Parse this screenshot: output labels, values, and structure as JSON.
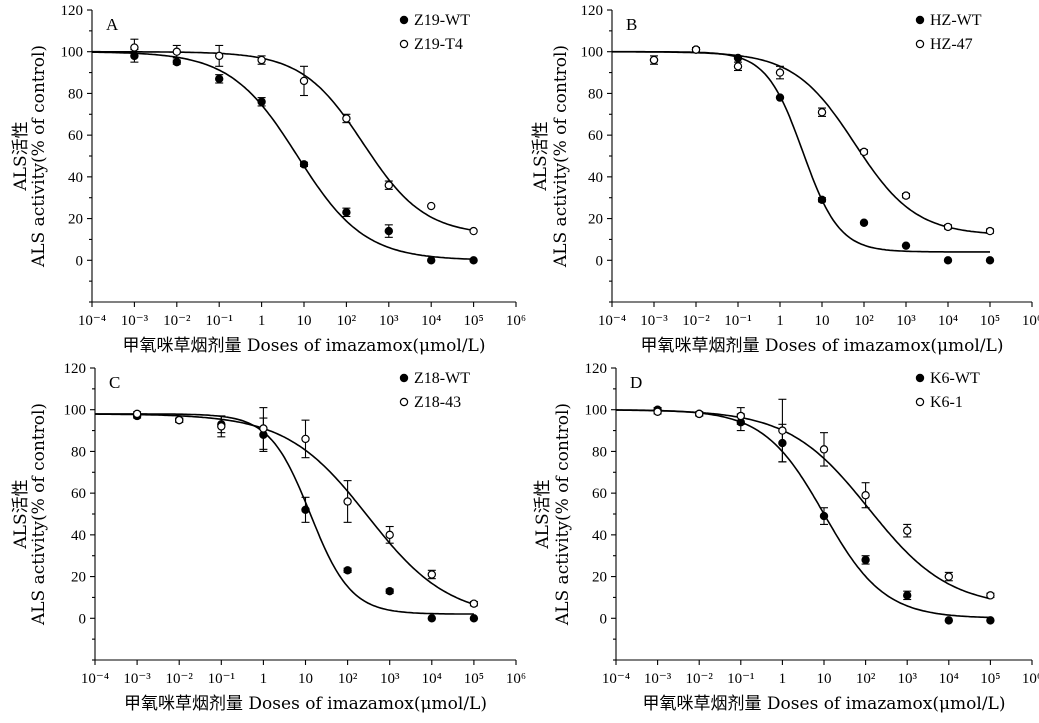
{
  "chart_data": [
    {
      "type": "scatter",
      "panel_label": "A",
      "xlabel": "甲氧咪草烟剂量 Doses of imazamox(μmol/L)",
      "ylabel_cn": "ALS活性",
      "ylabel_en": "ALS activity(% of control)",
      "x_scale": "log",
      "xlim": [
        0.0001,
        1000000
      ],
      "ylim": [
        -20,
        120
      ],
      "y_ticks": [
        0,
        20,
        40,
        60,
        80,
        100,
        120
      ],
      "x_tick_labels": [
        "10⁻⁴",
        "10⁻³",
        "10⁻²",
        "10⁻¹",
        "1",
        "10",
        "10²",
        "10³",
        "10⁴",
        "10⁵",
        "10⁶"
      ],
      "legend_position": "top-right",
      "grid": false,
      "series": [
        {
          "name": "Z19-WT",
          "marker": "filled-circle",
          "x": [
            0.001,
            0.01,
            0.1,
            1,
            10,
            100,
            1000,
            10000,
            100000
          ],
          "y": [
            98,
            95,
            87,
            76,
            46,
            23,
            14,
            0,
            0
          ],
          "err": [
            3,
            1,
            2,
            2,
            1,
            2,
            3,
            0,
            0
          ],
          "fit": {
            "top": 100,
            "bottom": 0,
            "ec50": 7,
            "hill": 0.55
          }
        },
        {
          "name": "Z19-T4",
          "marker": "open-circle",
          "x": [
            0.001,
            0.01,
            0.1,
            1,
            10,
            100,
            1000,
            10000,
            100000
          ],
          "y": [
            102,
            100,
            98,
            96,
            86,
            68,
            36,
            26,
            14
          ],
          "err": [
            4,
            3,
            5,
            2,
            7,
            2,
            2,
            0,
            0
          ],
          "fit": {
            "top": 100,
            "bottom": 12,
            "ec50": 250,
            "hill": 0.6
          }
        }
      ]
    },
    {
      "type": "scatter",
      "panel_label": "B",
      "xlabel": "甲氧咪草烟剂量 Doses of imazamox(μmol/L)",
      "ylabel_cn": "ALS活性",
      "ylabel_en": "ALS activity(% of control)",
      "x_scale": "log",
      "xlim": [
        0.0001,
        1000000
      ],
      "ylim": [
        -20,
        120
      ],
      "y_ticks": [
        0,
        20,
        40,
        60,
        80,
        100,
        120
      ],
      "x_tick_labels": [
        "10⁻⁴",
        "10⁻³",
        "10⁻²",
        "10⁻¹",
        "1",
        "10",
        "10²",
        "10³",
        "10⁴",
        "10⁵",
        "10⁶"
      ],
      "legend_position": "top-right",
      "grid": false,
      "series": [
        {
          "name": "HZ-WT",
          "marker": "filled-circle",
          "x": [
            0.001,
            0.01,
            0.1,
            1,
            10,
            100,
            1000,
            10000,
            100000
          ],
          "y": [
            96,
            101,
            97,
            78,
            29,
            18,
            7,
            0,
            0
          ],
          "err": [
            0,
            0,
            0,
            0,
            1,
            0,
            0,
            0,
            0
          ],
          "fit": {
            "top": 100,
            "bottom": 4,
            "ec50": 3.5,
            "hill": 1.0
          }
        },
        {
          "name": "HZ-47",
          "marker": "open-circle",
          "x": [
            0.001,
            0.01,
            0.1,
            1,
            10,
            100,
            1000,
            10000,
            100000
          ],
          "y": [
            96,
            101,
            93,
            90,
            71,
            52,
            31,
            16,
            14
          ],
          "err": [
            2,
            1,
            2,
            3,
            2,
            1,
            1,
            1,
            1
          ],
          "fit": {
            "top": 100,
            "bottom": 12,
            "ec50": 60,
            "hill": 0.6
          }
        }
      ]
    },
    {
      "type": "scatter",
      "panel_label": "C",
      "xlabel": "甲氧咪草烟剂量 Doses of imazamox(μmol/L)",
      "ylabel_cn": "ALS活性",
      "ylabel_en": "ALS activity(% of control)",
      "x_scale": "log",
      "xlim": [
        0.0001,
        1000000
      ],
      "ylim": [
        -20,
        120
      ],
      "y_ticks": [
        0,
        20,
        40,
        60,
        80,
        100,
        120
      ],
      "x_tick_labels": [
        "10⁻⁴",
        "10⁻³",
        "10⁻²",
        "10⁻¹",
        "1",
        "10",
        "10²",
        "10³",
        "10⁴",
        "10⁵",
        "10⁶"
      ],
      "legend_position": "top-right",
      "grid": false,
      "series": [
        {
          "name": "Z18-WT",
          "marker": "filled-circle",
          "x": [
            0.001,
            0.01,
            0.1,
            1,
            10,
            100,
            1000,
            10000,
            100000
          ],
          "y": [
            97,
            95,
            93,
            88,
            52,
            23,
            13,
            0,
            0
          ],
          "err": [
            1,
            1,
            4,
            8,
            6,
            1,
            1,
            0,
            0
          ],
          "fit": {
            "top": 98,
            "bottom": 2,
            "ec50": 13,
            "hill": 0.9
          }
        },
        {
          "name": "Z18-43",
          "marker": "open-circle",
          "x": [
            0.001,
            0.01,
            0.1,
            1,
            10,
            100,
            1000,
            10000,
            100000
          ],
          "y": [
            98,
            95,
            92,
            91,
            86,
            56,
            40,
            21,
            7
          ],
          "err": [
            1,
            1,
            5,
            10,
            9,
            10,
            4,
            2,
            1
          ],
          "fit": {
            "top": 98,
            "bottom": 0,
            "ec50": 300,
            "hill": 0.45
          }
        }
      ]
    },
    {
      "type": "scatter",
      "panel_label": "D",
      "xlabel": "甲氧咪草烟剂量 Doses of imazamox(μmol/L)",
      "ylabel_cn": "ALS活性",
      "ylabel_en": "ALS activity(% of control)",
      "x_scale": "log",
      "xlim": [
        0.0001,
        1000000
      ],
      "ylim": [
        -20,
        120
      ],
      "y_ticks": [
        0,
        20,
        40,
        60,
        80,
        100,
        120
      ],
      "x_tick_labels": [
        "10⁻⁴",
        "10⁻³",
        "10⁻²",
        "10⁻¹",
        "1",
        "10",
        "10²",
        "10³",
        "10⁴",
        "10⁵",
        "10⁶"
      ],
      "legend_position": "top-right",
      "grid": false,
      "series": [
        {
          "name": "K6-WT",
          "marker": "filled-circle",
          "x": [
            0.001,
            0.01,
            0.1,
            1,
            10,
            100,
            1000,
            10000,
            100000
          ],
          "y": [
            100,
            98,
            94,
            84,
            49,
            28,
            11,
            -1,
            -1
          ],
          "err": [
            1,
            1,
            4,
            9,
            4,
            2,
            2,
            0,
            0
          ],
          "fit": {
            "top": 100,
            "bottom": 0,
            "ec50": 10,
            "hill": 0.6
          }
        },
        {
          "name": "K6-1",
          "marker": "open-circle",
          "x": [
            0.001,
            0.01,
            0.1,
            1,
            10,
            100,
            1000,
            10000,
            100000
          ],
          "y": [
            99,
            98,
            97,
            90,
            81,
            59,
            42,
            20,
            11
          ],
          "err": [
            1,
            1,
            4,
            15,
            8,
            6,
            3,
            2,
            1
          ],
          "fit": {
            "top": 100,
            "bottom": 5,
            "ec50": 120,
            "hill": 0.45
          }
        }
      ]
    }
  ]
}
